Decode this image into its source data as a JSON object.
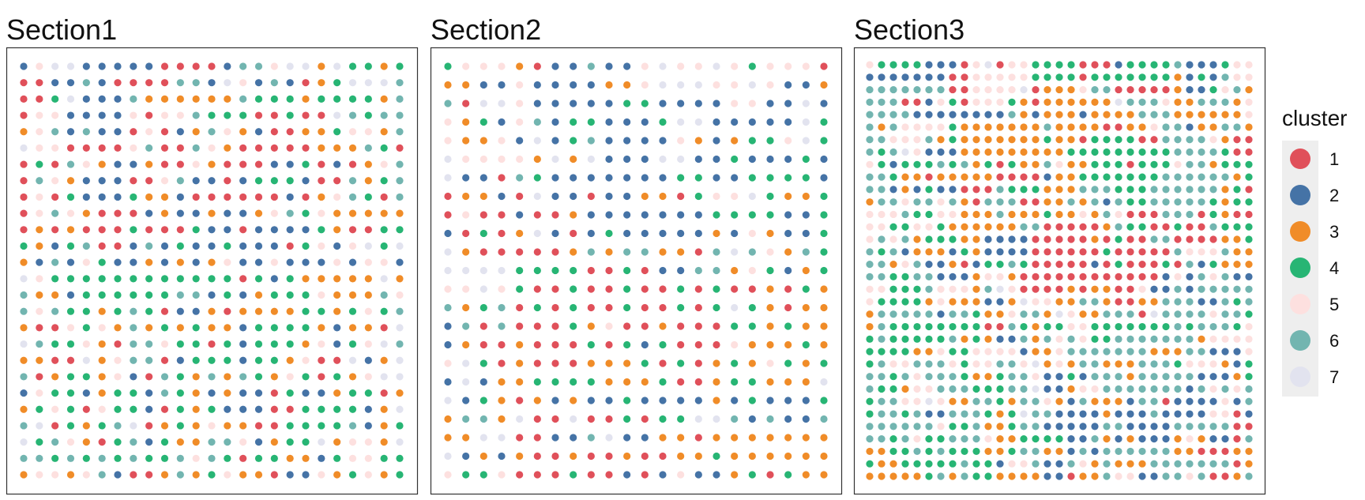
{
  "chart_data": {
    "type": "scatter",
    "description_kind": "spatial cluster map",
    "colors": {
      "1": "#e0505a",
      "2": "#4573a6",
      "3": "#f08c28",
      "4": "#27b574",
      "5": "#fde0df",
      "6": "#72b5b0",
      "7": "#e2e3ef"
    },
    "legend": {
      "title": "cluster",
      "position": "right",
      "items": [
        {
          "label": "1",
          "color": "#e0505a"
        },
        {
          "label": "2",
          "color": "#4573a6"
        },
        {
          "label": "3",
          "color": "#f08c28"
        },
        {
          "label": "4",
          "color": "#27b574"
        },
        {
          "label": "5",
          "color": "#fde0df"
        },
        {
          "label": "6",
          "color": "#72b5b0"
        },
        {
          "label": "7",
          "color": "#e2e3ef"
        }
      ]
    },
    "panels": [
      {
        "title": "Section1",
        "grid": [
          "2577222221111266577374434",
          "1122621111662752621347776",
          "1147222633333364443444436",
          "1552222515564441141176466",
          "3562622151236532113345536",
          "7551111561165311111333641",
          "1416532231153111224121356",
          "1653222115622124442116346",
          "1514222433211111121356416",
          "1565311123223223564533333",
          "1313111411142212222431144",
          "4324611262422422214525747",
          "3262542232323522522252552",
          "7544444444444414243333373",
          "6332444444662423444533365",
          "6564434641223133334434546",
          "3115453634343324444323317",
          "7644531665441424443524576",
          "3311735661244424435117237",
          "6134435216436364354143577",
          "2544234426432322142234413",
          "3454154421434222114444237",
          "6714346713435331144446234",
          "7465314624336652344735537",
          "6646464644656414433245544",
          "3553562113634533122534534"
        ]
      },
      {
        "title": "Section2",
        "grid": [
          "4555312262257557545551",
          "3322522223357775575223",
          "6177522222442222552272",
          "5342562442224772222274",
          "5335272462222532344574",
          "7555537372227722422242",
          "7221642222222442244442",
          "1332172212233145574334",
          "1511211322222224444224",
          "2141372124222223253224",
          "7311111363663316765364",
          "7777444411412266354234",
          "5575411411411414113143",
          "6346141411411414743133",
          "2616111435113111443433",
          "2311311141424111533343",
          "5741311133341413435434",
          "2723344443334113443337",
          "7243132322422223242224",
          "3663711711414477626226",
          "3377112267223313333333",
          "7232311311311334333333",
          "5445111411212522341433"
        ]
      },
      {
        "title": "Section3",
        "grid": [
          "544442221571554444111244446222455",
          "222222211555554444144444443242655",
          "666666611555571333566111113224563",
          "666112541555431333333766653366635",
          "666622222222632333233336663333335",
          "636555543333333633331133566233663",
          "665556343333333433144441166665311",
          "646752223333333334444444446666411",
          "542444646341433653344414445663444",
          "664331333331111233444444466666634",
          "662324221116444333666444666666341",
          "366566563166611336362644666664344",
          "555644553336333433536511166614311",
          "554455433333366111113644114116444",
          "565634443322221111131411661111334",
          "646233324322221111114111116555633",
          "663562231244641111121411141624333",
          "664466222355311111111111125265622",
          "554446555367511113133115226266666",
          "544443533322375533663113366622646",
          "366666266433566375336661766665664",
          "364444444411643445544444446466645",
          "464444463432263656544666666635555",
          "444433544555523356666666333662225",
          "465566654556657353663336664555324",
          "664656664334665224266636666622234",
          "644355666444667223556666666265656",
          "466557533664366532633326612222526",
          "466462266643476622223222622225512",
          "666666544633466222226622226666611",
          "664654466653344442263232223532216",
          "334464644433466332626666663311133",
          "433444446442556226536333666666613",
          "333334636443333221336552266561136"
        ]
      }
    ]
  }
}
